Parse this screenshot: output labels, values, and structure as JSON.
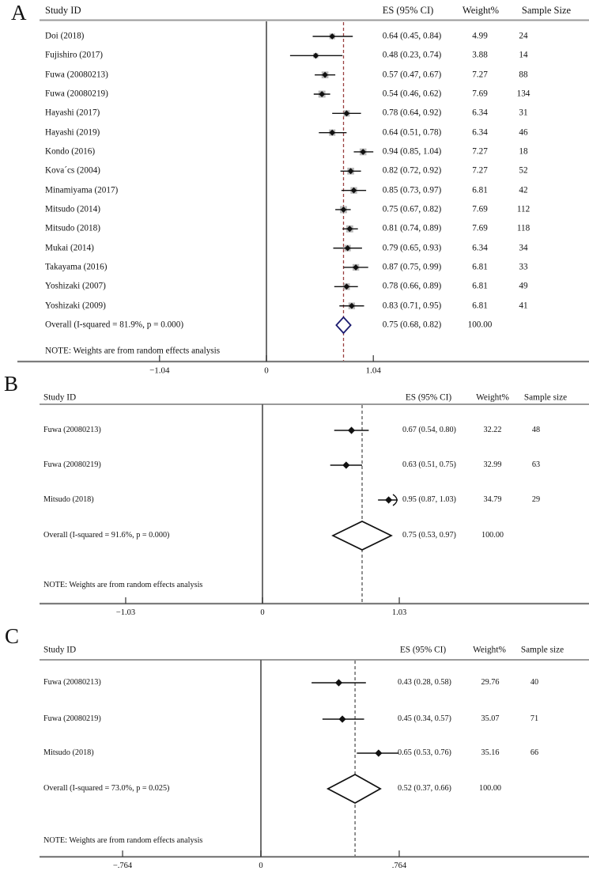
{
  "chart_data": [
    {
      "type": "scatter",
      "subtype": "forest-plot",
      "panel": "A",
      "columns": [
        "Study ID",
        "ES (95% CI)",
        "Weight%",
        "Sample Size"
      ],
      "studies": [
        {
          "name": "Doi (2018)",
          "est": 0.64,
          "lo": 0.45,
          "hi": 0.84,
          "es_text": "0.64 (0.45, 0.84)",
          "weight": "4.99",
          "sample": "24"
        },
        {
          "name": "Fujishiro (2017)",
          "est": 0.48,
          "lo": 0.23,
          "hi": 0.74,
          "es_text": "0.48 (0.23, 0.74)",
          "weight": "3.88",
          "sample": "14"
        },
        {
          "name": "Fuwa (20080213)",
          "est": 0.57,
          "lo": 0.47,
          "hi": 0.67,
          "es_text": "0.57 (0.47, 0.67)",
          "weight": "7.27",
          "sample": "88"
        },
        {
          "name": "Fuwa (20080219)",
          "est": 0.54,
          "lo": 0.46,
          "hi": 0.62,
          "es_text": "0.54 (0.46, 0.62)",
          "weight": "7.69",
          "sample": "134"
        },
        {
          "name": "Hayashi (2017)",
          "est": 0.78,
          "lo": 0.64,
          "hi": 0.92,
          "es_text": "0.78 (0.64, 0.92)",
          "weight": "6.34",
          "sample": "31"
        },
        {
          "name": "Hayashi (2019)",
          "est": 0.64,
          "lo": 0.51,
          "hi": 0.78,
          "es_text": "0.64 (0.51, 0.78)",
          "weight": "6.34",
          "sample": "46"
        },
        {
          "name": "Kondo (2016)",
          "est": 0.94,
          "lo": 0.85,
          "hi": 1.04,
          "es_text": "0.94 (0.85, 1.04)",
          "weight": "7.27",
          "sample": "18"
        },
        {
          "name": "Kova´cs (2004)",
          "est": 0.82,
          "lo": 0.72,
          "hi": 0.92,
          "es_text": "0.82 (0.72, 0.92)",
          "weight": "7.27",
          "sample": "52"
        },
        {
          "name": "Minamiyama (2017)",
          "est": 0.85,
          "lo": 0.73,
          "hi": 0.97,
          "es_text": "0.85 (0.73, 0.97)",
          "weight": "6.81",
          "sample": "42"
        },
        {
          "name": "Mitsudo (2014)",
          "est": 0.75,
          "lo": 0.67,
          "hi": 0.82,
          "es_text": "0.75 (0.67, 0.82)",
          "weight": "7.69",
          "sample": "112"
        },
        {
          "name": "Mitsudo (2018)",
          "est": 0.81,
          "lo": 0.74,
          "hi": 0.89,
          "es_text": "0.81 (0.74, 0.89)",
          "weight": "7.69",
          "sample": "118"
        },
        {
          "name": "Mukai (2014)",
          "est": 0.79,
          "lo": 0.65,
          "hi": 0.93,
          "es_text": "0.79 (0.65, 0.93)",
          "weight": "6.34",
          "sample": "34"
        },
        {
          "name": "Takayama (2016)",
          "est": 0.87,
          "lo": 0.75,
          "hi": 0.99,
          "es_text": "0.87 (0.75, 0.99)",
          "weight": "6.81",
          "sample": "33"
        },
        {
          "name": "Yoshizaki (2007)",
          "est": 0.78,
          "lo": 0.66,
          "hi": 0.89,
          "es_text": "0.78 (0.66, 0.89)",
          "weight": "6.81",
          "sample": "49"
        },
        {
          "name": "Yoshizaki (2009)",
          "est": 0.83,
          "lo": 0.71,
          "hi": 0.95,
          "es_text": "0.83 (0.71, 0.95)",
          "weight": "6.81",
          "sample": "41"
        }
      ],
      "overall": {
        "name": "Overall  (I-squared = 81.9%, p = 0.000)",
        "est": 0.75,
        "lo": 0.68,
        "hi": 0.82,
        "es_text": "0.75 (0.68, 0.82)",
        "weight": "100.00"
      },
      "note": "NOTE: Weights are from random effects analysis",
      "x_ticks": [
        {
          "label": "−1.04",
          "value": -1.04
        },
        {
          "label": "0",
          "value": 0
        },
        {
          "label": "1.04",
          "value": 1.04
        }
      ],
      "ref_line_value": 0.75,
      "colors": {
        "ref_line": "#9a4040",
        "diamond_outline": "#1c1c70",
        "weight_box": "#a9a9a9"
      }
    },
    {
      "type": "scatter",
      "subtype": "forest-plot",
      "panel": "B",
      "columns": [
        "Study ID",
        "ES (95% CI)",
        "Weight%",
        "Sample size"
      ],
      "studies": [
        {
          "name": "Fuwa (20080213)",
          "est": 0.67,
          "lo": 0.54,
          "hi": 0.8,
          "es_text": "0.67 (0.54, 0.80)",
          "weight": "32.22",
          "sample": "48"
        },
        {
          "name": "Fuwa (20080219)",
          "est": 0.63,
          "lo": 0.51,
          "hi": 0.75,
          "es_text": "0.63 (0.51, 0.75)",
          "weight": "32.99",
          "sample": "63"
        },
        {
          "name": "Mitsudo (2018)",
          "est": 0.95,
          "lo": 0.87,
          "hi": 1.03,
          "es_text": "0.95 (0.87, 1.03)",
          "weight": "34.79",
          "sample": "29",
          "arrow_hi": true
        }
      ],
      "overall": {
        "name": "Overall  (I-squared = 91.6%, p = 0.000)",
        "est": 0.75,
        "lo": 0.53,
        "hi": 0.97,
        "es_text": "0.75 (0.53, 0.97)",
        "weight": "100.00"
      },
      "note": "NOTE: Weights are from random effects analysis",
      "x_ticks": [
        {
          "label": "−1.03",
          "value": -1.03
        },
        {
          "label": "0",
          "value": 0
        },
        {
          "label": "1.03",
          "value": 1.03
        }
      ],
      "ref_line_value": 0.75,
      "colors": {
        "ref_line": "#555555",
        "diamond_outline": "#111111",
        "weight_box": "#a9a9a9"
      }
    },
    {
      "type": "scatter",
      "subtype": "forest-plot",
      "panel": "C",
      "columns": [
        "Study ID",
        "ES (95% CI)",
        "Weight%",
        "Sample size"
      ],
      "studies": [
        {
          "name": "Fuwa (20080213)",
          "est": 0.43,
          "lo": 0.28,
          "hi": 0.58,
          "es_text": "0.43 (0.28, 0.58)",
          "weight": "29.76",
          "sample": "40"
        },
        {
          "name": "Fuwa (20080219)",
          "est": 0.45,
          "lo": 0.34,
          "hi": 0.57,
          "es_text": "0.45 (0.34, 0.57)",
          "weight": "35.07",
          "sample": "71"
        },
        {
          "name": "Mitsudo (2018)",
          "est": 0.65,
          "lo": 0.53,
          "hi": 0.76,
          "es_text": "0.65 (0.53, 0.76)",
          "weight": "35.16",
          "sample": "66"
        }
      ],
      "overall": {
        "name": "Overall  (I-squared = 73.0%, p = 0.025)",
        "est": 0.52,
        "lo": 0.37,
        "hi": 0.66,
        "es_text": "0.52 (0.37, 0.66)",
        "weight": "100.00"
      },
      "note": "NOTE: Weights are from random effects analysis",
      "x_ticks": [
        {
          "label": "−.764",
          "value": -0.764
        },
        {
          "label": "0",
          "value": 0
        },
        {
          "label": ".764",
          "value": 0.764
        }
      ],
      "ref_line_value": 0.52,
      "colors": {
        "ref_line": "#555555",
        "diamond_outline": "#111111",
        "weight_box": "#a9a9a9"
      }
    }
  ]
}
